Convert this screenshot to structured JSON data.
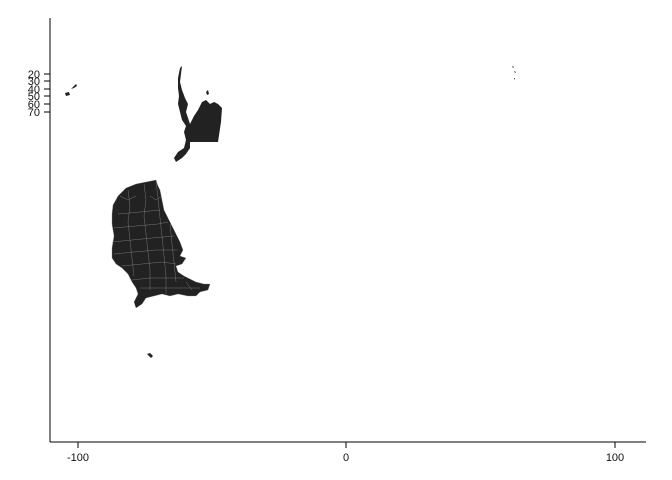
{
  "chart_data": {
    "type": "map",
    "title": "",
    "xlabel": "",
    "ylabel": "",
    "x_ticks": [
      {
        "value": -100,
        "label": "-100"
      },
      {
        "value": 0,
        "label": "0"
      },
      {
        "value": 100,
        "label": "100"
      }
    ],
    "y_ticks": [
      {
        "value": 20,
        "label": "20"
      },
      {
        "value": 30,
        "label": "30"
      },
      {
        "value": 40,
        "label": "40"
      },
      {
        "value": 50,
        "label": "50"
      },
      {
        "value": 60,
        "label": "60"
      },
      {
        "value": 70,
        "label": "70"
      }
    ],
    "grid": false,
    "legend": "none",
    "fill_color": "#222222",
    "border_color": "#888888"
  }
}
